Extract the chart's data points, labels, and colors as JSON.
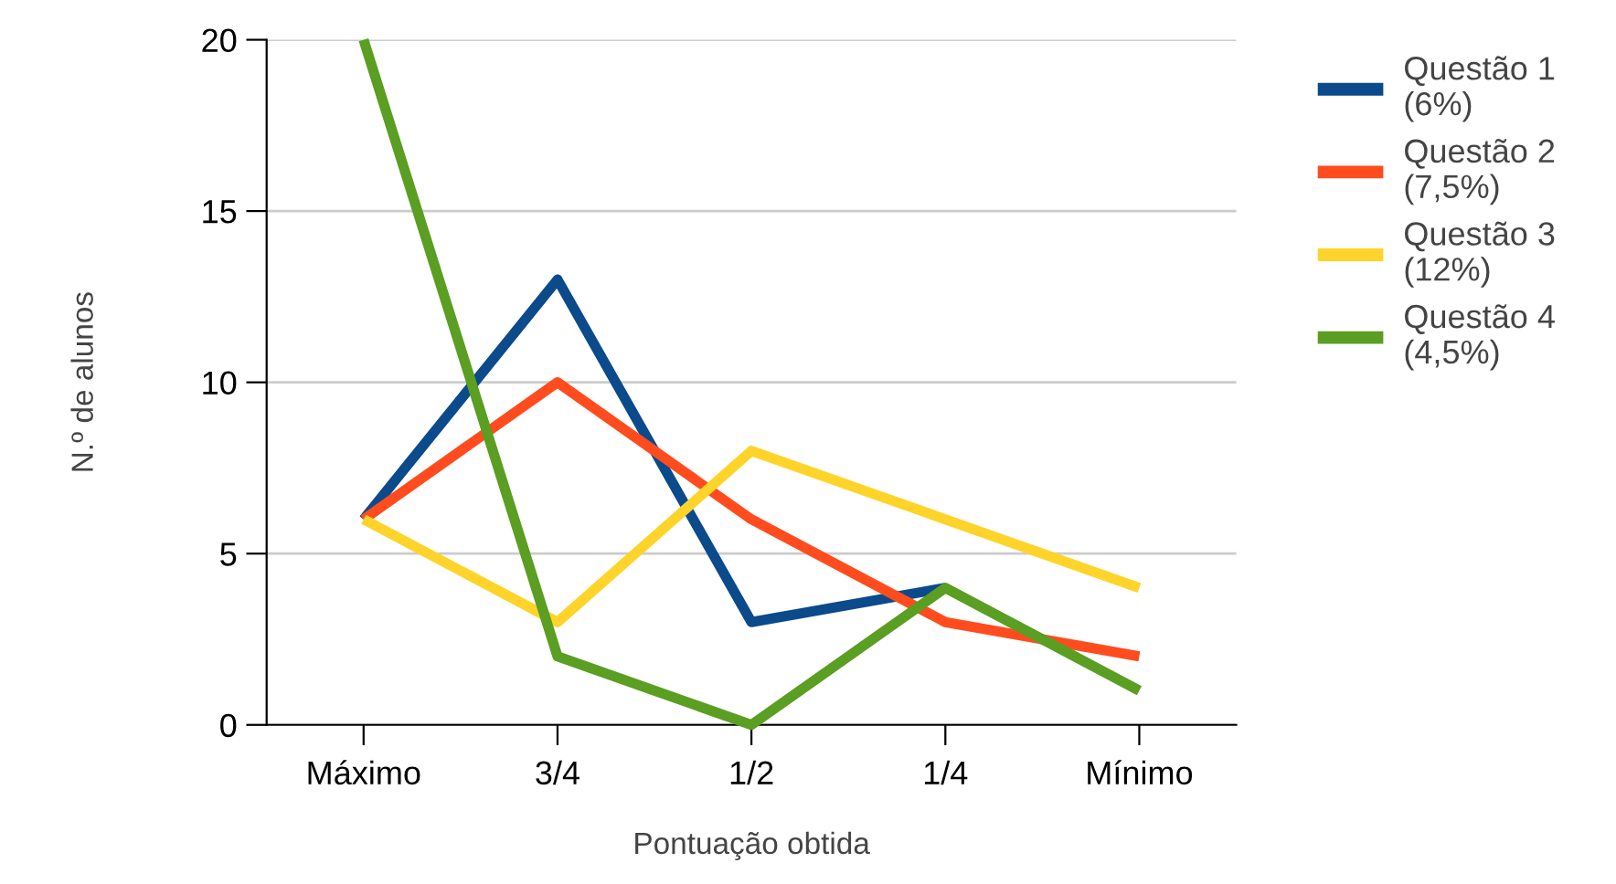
{
  "chart_data": {
    "type": "line",
    "xlabel": "Pontuação obtida",
    "ylabel": "N.º de alunos",
    "categories": [
      "Máximo",
      "3/4",
      "1/2",
      "1/4",
      "Mínimo"
    ],
    "series": [
      {
        "name": "Questão 1\n(6%)",
        "color": "#0b4a8b",
        "values": [
          6,
          13,
          3,
          4,
          null
        ]
      },
      {
        "name": "Questão 2\n(7,5%)",
        "color": "#ff4c1f",
        "values": [
          6,
          10,
          6,
          3,
          2
        ]
      },
      {
        "name": "Questão 3\n(12%)",
        "color": "#ffd42a",
        "values": [
          6,
          3,
          8,
          6,
          4
        ]
      },
      {
        "name": "Questão 4\n(4,5%)",
        "color": "#5a9e22",
        "values": [
          20,
          2,
          0,
          4,
          1
        ]
      }
    ],
    "ylim": [
      0,
      20
    ],
    "yticks": [
      0,
      5,
      10,
      15,
      20
    ],
    "grid": "y",
    "legend": "top right",
    "marker": "none",
    "line_style": "solid"
  }
}
